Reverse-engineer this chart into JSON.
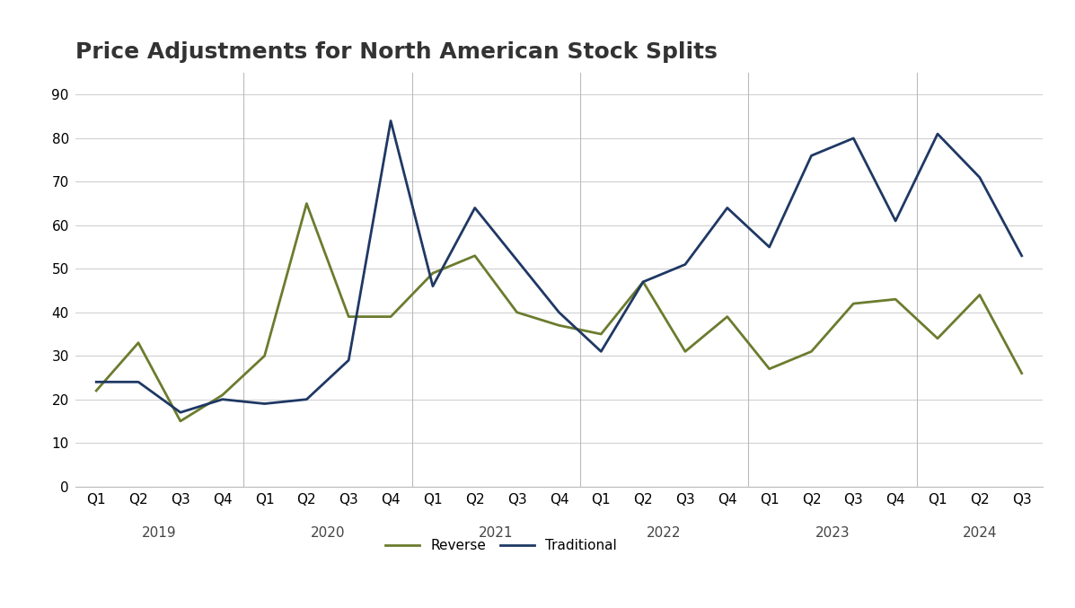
{
  "title": "Price Adjustments for North American Stock Splits",
  "reverse_color": "#6b7c2e",
  "traditional_color": "#1f3864",
  "background_color": "#ffffff",
  "ylim": [
    0,
    95
  ],
  "yticks": [
    0,
    10,
    20,
    30,
    40,
    50,
    60,
    70,
    80,
    90
  ],
  "quarters": [
    "Q1",
    "Q2",
    "Q3",
    "Q4",
    "Q1",
    "Q2",
    "Q3",
    "Q4",
    "Q1",
    "Q2",
    "Q3",
    "Q4",
    "Q1",
    "Q2",
    "Q3",
    "Q4",
    "Q1",
    "Q2",
    "Q3",
    "Q4",
    "Q1",
    "Q2",
    "Q3"
  ],
  "reverse_values": [
    22,
    33,
    15,
    21,
    30,
    65,
    39,
    39,
    49,
    53,
    40,
    37,
    35,
    47,
    31,
    39,
    27,
    31,
    42,
    43,
    34,
    44,
    26
  ],
  "traditional_values": [
    24,
    24,
    17,
    20,
    19,
    20,
    29,
    84,
    46,
    64,
    52,
    40,
    31,
    47,
    51,
    64,
    55,
    76,
    80,
    61,
    81,
    71,
    53
  ],
  "year_label_info": [
    [
      "2019",
      1.5
    ],
    [
      "2020",
      5.5
    ],
    [
      "2021",
      9.5
    ],
    [
      "2022",
      13.5
    ],
    [
      "2023",
      17.5
    ],
    [
      "2024",
      21.0
    ]
  ],
  "year_boundaries": [
    3.5,
    7.5,
    11.5,
    15.5,
    19.5
  ],
  "grid_color": "#d0d0d0",
  "spine_color": "#bbbbbb",
  "line_width": 2.0,
  "legend_labels": [
    "Reverse",
    "Traditional"
  ],
  "title_fontsize": 18,
  "tick_fontsize": 11,
  "year_fontsize": 11,
  "legend_fontsize": 11
}
